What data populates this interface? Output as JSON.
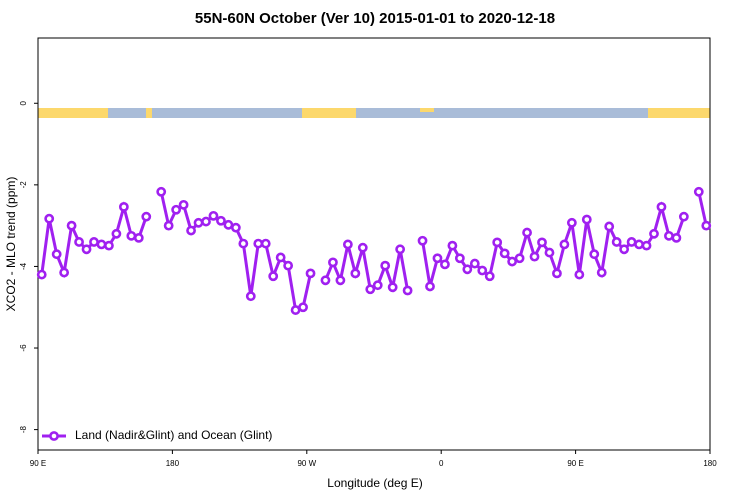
{
  "chart_data": {
    "type": "line",
    "title": "55N-60N October (Ver 10)   2015-01-01 to 2020-12-18",
    "x_label": "Longitude (deg E)",
    "y_label": "XCO2 - MLO trend (ppm)",
    "x": [
      92.5,
      97.5,
      102.5,
      107.5,
      112.5,
      117.5,
      122.5,
      127.5,
      132.5,
      137.5,
      142.5,
      147.5,
      152.5,
      157.5,
      162.5,
      167.5,
      172.5,
      177.5,
      182.5,
      187.5,
      192.5,
      197.5,
      202.5,
      207.5,
      212.5,
      217.5,
      222.5,
      227.5,
      232.5,
      237.5,
      242.5,
      247.5,
      252.5,
      257.5,
      262.5,
      267.5,
      272.5,
      277.5,
      282.5,
      287.5,
      292.5,
      297.5,
      302.5,
      307.5,
      312.5,
      317.5,
      322.5,
      327.5,
      332.5,
      337.5,
      342.5,
      347.5,
      352.5,
      357.5,
      362.5,
      367.5,
      372.5,
      377.5,
      382.5,
      387.5,
      392.5,
      397.5,
      402.5,
      407.5,
      412.5,
      417.5,
      422.5,
      427.5,
      432.5,
      437.5,
      442.5,
      447.5,
      452.5,
      457.5,
      462.5,
      467.5,
      472.5,
      477.5,
      482.5,
      487.5,
      492.5,
      497.5,
      502.5,
      507.5,
      512.5,
      517.5,
      522.5,
      527.5,
      532.5,
      537.5
    ],
    "series": [
      {
        "name": "Land (Nadir&Glint) and Ocean (Glint)",
        "color": "#a020f0",
        "values": [
          -4.2,
          -2.83,
          -3.7,
          -4.15,
          -3.0,
          -3.4,
          -3.58,
          -3.4,
          -3.46,
          -3.49,
          -3.2,
          -2.54,
          -3.25,
          -3.3,
          -2.78,
          null,
          -2.17,
          -3.0,
          -2.61,
          -2.49,
          -3.12,
          -2.93,
          -2.9,
          -2.76,
          -2.88,
          -2.98,
          -3.05,
          -3.44,
          -4.73,
          -3.44,
          -3.44,
          -4.24,
          -3.78,
          -3.98,
          -5.07,
          -5.0,
          -4.17,
          null,
          -4.34,
          -3.9,
          -4.34,
          -3.46,
          -4.17,
          -3.54,
          -4.56,
          -4.46,
          -3.98,
          -4.51,
          -3.58,
          -4.59,
          null,
          -3.37,
          -4.49,
          -3.8,
          -3.95,
          -3.49,
          -3.8,
          -4.07,
          -3.93,
          -4.1,
          -4.24,
          -3.41,
          -3.68,
          -3.88,
          -3.8,
          -3.17,
          -3.76,
          -3.41,
          -3.66,
          -4.17,
          -3.46,
          -2.93,
          -4.2,
          -2.85,
          -3.7,
          -4.15,
          -3.02,
          -3.4,
          -3.58,
          -3.4,
          -3.46,
          -3.49,
          -3.2,
          -2.54,
          -3.25,
          -3.3,
          -2.78,
          null,
          -2.17,
          -3.0
        ]
      }
    ],
    "xlim": [
      90,
      540
    ],
    "xticks": [
      {
        "value": 90,
        "label": "90 E"
      },
      180,
      {
        "value": 270,
        "label": "90 W"
      },
      {
        "value": 360,
        "label": "0"
      },
      {
        "value": 450,
        "label": "90 E"
      },
      {
        "value": 540,
        "label": "180"
      }
    ],
    "ylim": [
      -8.5,
      1.6
    ],
    "yticks": [
      0,
      -2,
      -4,
      -6,
      -8
    ],
    "legend": "bottom-left"
  }
}
